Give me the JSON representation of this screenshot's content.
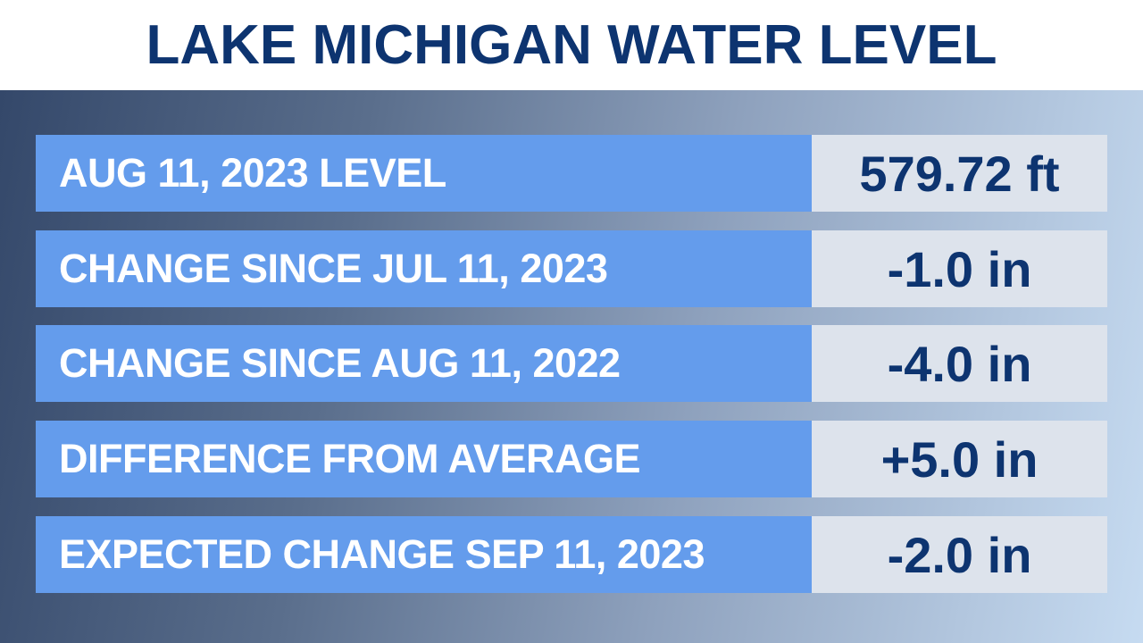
{
  "title": "LAKE MICHIGAN WATER LEVEL",
  "rows": [
    {
      "label": "AUG 11, 2023 LEVEL",
      "value": "579.72 ft"
    },
    {
      "label": "CHANGE SINCE JUL 11, 2023",
      "value": "-1.0 in"
    },
    {
      "label": "CHANGE SINCE AUG 11, 2022",
      "value": "-4.0 in"
    },
    {
      "label": "DIFFERENCE FROM AVERAGE",
      "value": "+5.0 in"
    },
    {
      "label": "EXPECTED CHANGE SEP 11, 2023",
      "value": "-2.0 in"
    }
  ],
  "colors": {
    "title": "#0d3470",
    "label_bg": "#649cec",
    "value_bg": "#dde3ec"
  }
}
